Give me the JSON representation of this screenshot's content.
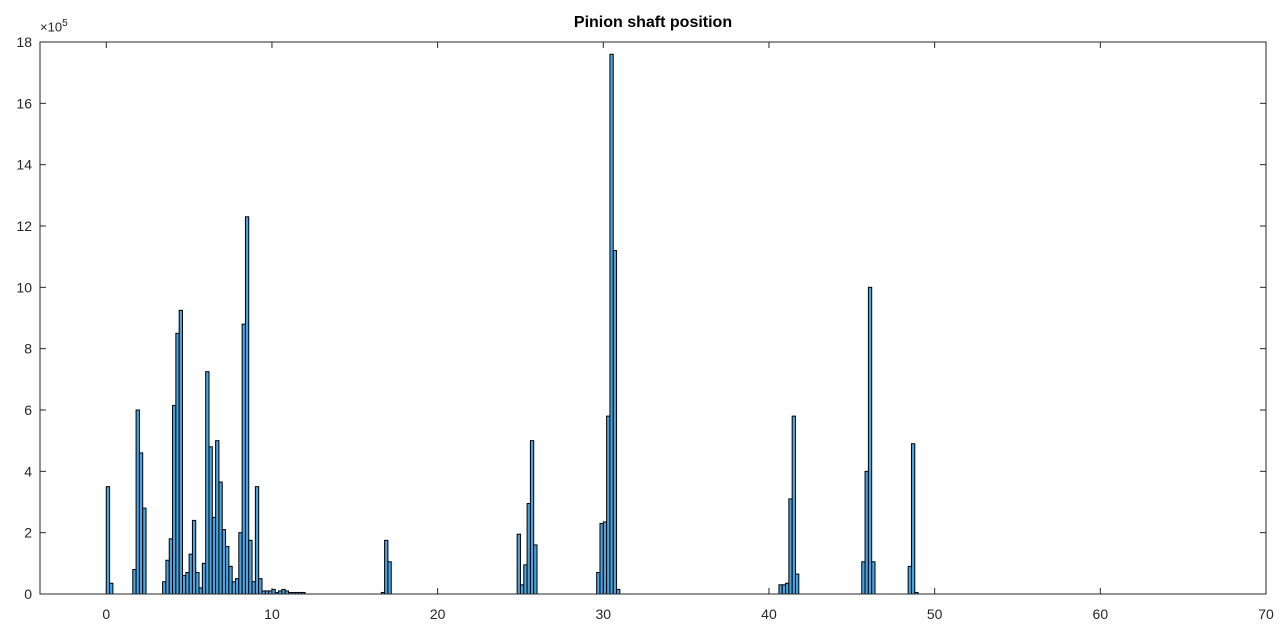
{
  "chart_data": {
    "type": "bar",
    "title": "Pinion shaft position",
    "xlabel": "",
    "ylabel": "",
    "xlim": [
      -4,
      70
    ],
    "ylim": [
      0,
      18
    ],
    "y_exponent_label": "×10",
    "y_exponent": "5",
    "x_ticks": [
      0,
      10,
      20,
      30,
      40,
      50,
      60,
      70
    ],
    "y_ticks": [
      0,
      2,
      4,
      6,
      8,
      10,
      12,
      14,
      16,
      18
    ],
    "bar_width": 0.2,
    "bar_color": "#4da3e0",
    "edge_color": "#000000",
    "grid": false,
    "x": [
      0.1,
      0.3,
      1.7,
      1.9,
      2.1,
      2.3,
      3.5,
      3.7,
      3.9,
      4.1,
      4.3,
      4.5,
      4.7,
      4.9,
      5.1,
      5.3,
      5.5,
      5.7,
      5.9,
      6.1,
      6.3,
      6.5,
      6.7,
      6.9,
      7.1,
      7.3,
      7.5,
      7.7,
      7.9,
      8.1,
      8.3,
      8.5,
      8.7,
      8.9,
      9.1,
      9.3,
      9.5,
      9.7,
      9.9,
      10.1,
      10.3,
      10.5,
      10.7,
      10.9,
      11.1,
      11.3,
      11.5,
      11.7,
      11.9,
      16.7,
      16.9,
      17.1,
      24.9,
      25.1,
      25.3,
      25.5,
      25.7,
      25.9,
      29.7,
      29.9,
      30.1,
      30.3,
      30.5,
      30.7,
      30.9,
      31.1,
      40.7,
      40.9,
      41.1,
      41.3,
      41.5,
      41.7,
      45.7,
      45.9,
      46.1,
      46.3,
      48.5,
      48.7,
      48.9
    ],
    "values": [
      3.5,
      0.35,
      0.8,
      6.0,
      4.6,
      2.8,
      0.4,
      1.1,
      1.8,
      6.15,
      8.5,
      9.25,
      0.6,
      0.7,
      1.3,
      2.4,
      0.7,
      0.2,
      1.0,
      7.25,
      4.8,
      2.5,
      5.0,
      3.65,
      2.1,
      1.55,
      0.9,
      0.4,
      0.5,
      2.0,
      8.8,
      12.3,
      1.75,
      0.4,
      3.5,
      0.5,
      0.1,
      0.1,
      0.1,
      0.15,
      0.05,
      0.1,
      0.15,
      0.1,
      0.05,
      0.05,
      0.05,
      0.05,
      0.05,
      0.05,
      1.75,
      1.05,
      1.95,
      0.3,
      0.95,
      2.95,
      5.0,
      1.6,
      0.7,
      2.3,
      2.35,
      5.8,
      17.6,
      11.2,
      0.15,
      0.0,
      0.3,
      0.3,
      0.35,
      3.1,
      5.8,
      0.65,
      1.05,
      4.0,
      10.0,
      1.05,
      0.9,
      4.9,
      0.05
    ]
  }
}
